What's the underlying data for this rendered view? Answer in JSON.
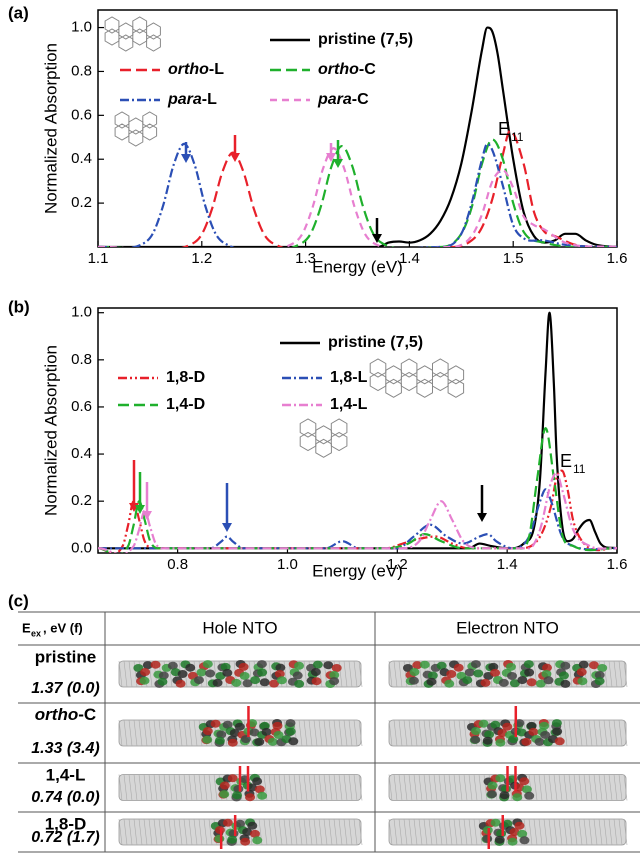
{
  "chart_data": [
    {
      "type": "line",
      "panel_label": "(a)",
      "xlabel": "Energy (eV)",
      "ylabel": "Normalized Absorption",
      "xlim": [
        1.1,
        1.6
      ],
      "ylim": [
        0,
        1.08
      ],
      "xticks": [
        1.1,
        1.2,
        1.3,
        1.4,
        1.5,
        1.6
      ],
      "yticks": [
        0.2,
        0.4,
        0.6,
        {
          "value": 1,
          "label": "1.0"
        },
        0.8
      ],
      "annotation": {
        "main": "E",
        "sub": "11"
      },
      "series": [
        {
          "name": "pristine (7,5)",
          "color": "#000000",
          "linestyle": "solid",
          "italic_prefix": false,
          "x": [
            1.1,
            1.37,
            1.38,
            1.39,
            1.4,
            1.41,
            1.42,
            1.43,
            1.44,
            1.45,
            1.46,
            1.47,
            1.475,
            1.48,
            1.485,
            1.49,
            1.5,
            1.51,
            1.52,
            1.53,
            1.54,
            1.55,
            1.56,
            1.57,
            1.58,
            1.6
          ],
          "values": [
            0,
            0,
            0.02,
            0.025,
            0.02,
            0.03,
            0.06,
            0.12,
            0.22,
            0.38,
            0.62,
            0.9,
            1.0,
            0.98,
            0.88,
            0.72,
            0.4,
            0.16,
            0.05,
            0.02,
            0.03,
            0.06,
            0.06,
            0.03,
            0.01,
            0
          ]
        },
        {
          "name": "ortho-L",
          "color": "#e8202a",
          "linestyle": "dash",
          "italic_prefix": true,
          "x": [
            1.1,
            1.19,
            1.2,
            1.21,
            1.22,
            1.23,
            1.24,
            1.25,
            1.26,
            1.27,
            1.44,
            1.46,
            1.47,
            1.48,
            1.49,
            1.497,
            1.51,
            1.52,
            1.53,
            1.54,
            1.56,
            1.6
          ],
          "values": [
            0,
            0.013,
            0.058,
            0.176,
            0.344,
            0.43,
            0.344,
            0.176,
            0.058,
            0.013,
            0,
            0.03,
            0.09,
            0.22,
            0.42,
            0.53,
            0.38,
            0.16,
            0.07,
            0.05,
            0.01,
            0
          ]
        },
        {
          "name": "ortho-C",
          "color": "#1fb02c",
          "linestyle": "dash",
          "italic_prefix": true,
          "x": [
            1.1,
            1.295,
            1.305,
            1.315,
            1.325,
            1.335,
            1.345,
            1.355,
            1.365,
            1.375,
            1.43,
            1.45,
            1.46,
            1.47,
            1.48,
            1.49,
            1.5,
            1.51,
            1.53,
            1.6
          ],
          "values": [
            0,
            0.014,
            0.062,
            0.189,
            0.368,
            0.46,
            0.368,
            0.189,
            0.062,
            0.014,
            0,
            0.06,
            0.18,
            0.38,
            0.49,
            0.4,
            0.2,
            0.07,
            0.02,
            0
          ]
        },
        {
          "name": "para-L",
          "color": "#2b4fb5",
          "linestyle": "dashdot",
          "italic_prefix": true,
          "x": [
            1.1,
            1.143,
            1.153,
            1.163,
            1.173,
            1.183,
            1.193,
            1.203,
            1.213,
            1.223,
            1.43,
            1.45,
            1.46,
            1.47,
            1.475,
            1.48,
            1.49,
            1.5,
            1.51,
            1.53,
            1.55,
            1.6
          ],
          "values": [
            0,
            0.014,
            0.063,
            0.193,
            0.376,
            0.47,
            0.376,
            0.193,
            0.063,
            0.014,
            0,
            0.06,
            0.2,
            0.4,
            0.47,
            0.44,
            0.28,
            0.1,
            0.04,
            0.03,
            0.01,
            0
          ]
        },
        {
          "name": "para-C",
          "color": "#e77fd0",
          "linestyle": "shortdash",
          "italic_prefix": true,
          "x": [
            1.1,
            1.287,
            1.297,
            1.307,
            1.317,
            1.327,
            1.337,
            1.347,
            1.357,
            1.367,
            1.44,
            1.46,
            1.47,
            1.48,
            1.49,
            1.5,
            1.51,
            1.52,
            1.53,
            1.55,
            1.6
          ],
          "values": [
            0,
            0.014,
            0.061,
            0.185,
            0.36,
            0.45,
            0.36,
            0.185,
            0.061,
            0.014,
            0,
            0.05,
            0.15,
            0.3,
            0.35,
            0.27,
            0.14,
            0.1,
            0.08,
            0.02,
            0
          ]
        }
      ]
    },
    {
      "type": "line",
      "panel_label": "(b)",
      "xlabel": "Energy (eV)",
      "ylabel": "Normalized Absorption",
      "xlim": [
        0.655,
        1.6
      ],
      "ylim": [
        -0.02,
        1.02
      ],
      "xticks": [
        0.8,
        {
          "value": 1,
          "label": "1.0"
        },
        1.2,
        1.4,
        1.6
      ],
      "yticks": [
        {
          "value": 0,
          "label": "0.0"
        },
        0.2,
        0.4,
        0.6,
        0.8,
        {
          "value": 1,
          "label": "1.0"
        }
      ],
      "annotation": {
        "main": "E",
        "sub": "11"
      },
      "series": [
        {
          "name": "pristine (7,5)",
          "color": "#000000",
          "linestyle": "solid",
          "italic_prefix": false,
          "x": [
            0.655,
            1.33,
            1.35,
            1.37,
            1.4,
            1.43,
            1.45,
            1.46,
            1.47,
            1.477,
            1.485,
            1.49,
            1.5,
            1.51,
            1.52,
            1.53,
            1.54,
            1.55,
            1.56,
            1.57,
            1.6
          ],
          "values": [
            0,
            0,
            0.02,
            0.01,
            0,
            0.02,
            0.1,
            0.3,
            0.75,
            1.0,
            0.7,
            0.4,
            0.1,
            0.03,
            0.04,
            0.08,
            0.11,
            0.12,
            0.07,
            0.02,
            0
          ]
        },
        {
          "name": "1,8-D",
          "color": "#e8202a",
          "linestyle": "dashdotdot",
          "italic_prefix": false,
          "x": [
            0.655,
            0.7,
            0.71,
            0.72,
            0.73,
            0.74,
            0.76,
            1.18,
            1.21,
            1.24,
            1.27,
            1.3,
            1.33,
            1.42,
            1.46,
            1.48,
            1.49,
            1.5,
            1.51,
            1.52,
            1.54,
            1.6
          ],
          "values": [
            0,
            0.01,
            0.1,
            0.2,
            0.12,
            0.03,
            0,
            0,
            0.02,
            0.04,
            0.05,
            0.02,
            0,
            0,
            0.05,
            0.18,
            0.3,
            0.33,
            0.25,
            0.12,
            0.02,
            0
          ]
        },
        {
          "name": "1,8-L",
          "color": "#2b4fb5",
          "linestyle": "dashdot",
          "italic_prefix": false,
          "x": [
            0.655,
            0.86,
            0.88,
            0.89,
            0.9,
            0.92,
            1.07,
            1.1,
            1.13,
            1.2,
            1.23,
            1.26,
            1.29,
            1.32,
            1.35,
            1.365,
            1.38,
            1.41,
            1.44,
            1.46,
            1.47,
            1.48,
            1.5,
            1.52,
            1.6
          ],
          "values": [
            0,
            0,
            0.03,
            0.05,
            0.03,
            0,
            0,
            0.03,
            0,
            0,
            0.05,
            0.1,
            0.05,
            0.02,
            0.05,
            0.06,
            0.03,
            0,
            0.05,
            0.2,
            0.25,
            0.2,
            0.05,
            0.01,
            0
          ]
        },
        {
          "name": "1,4-D",
          "color": "#1fb02c",
          "linestyle": "dash",
          "italic_prefix": false,
          "x": [
            0.655,
            0.71,
            0.72,
            0.73,
            0.74,
            0.75,
            0.77,
            1.18,
            1.22,
            1.25,
            1.28,
            1.32,
            1.42,
            1.44,
            1.455,
            1.47,
            1.485,
            1.5,
            1.52,
            1.6
          ],
          "values": [
            0,
            0.01,
            0.1,
            0.2,
            0.12,
            0.03,
            0,
            0,
            0.02,
            0.06,
            0.03,
            0,
            0,
            0.05,
            0.3,
            0.51,
            0.3,
            0.06,
            0.01,
            0
          ]
        },
        {
          "name": "1,4-L",
          "color": "#e77fd0",
          "linestyle": "dashdot",
          "italic_prefix": false,
          "x": [
            0.655,
            0.72,
            0.73,
            0.74,
            0.75,
            0.76,
            0.78,
            1.2,
            1.24,
            1.26,
            1.28,
            1.3,
            1.32,
            1.35,
            1.44,
            1.46,
            1.48,
            1.49,
            1.5,
            1.52,
            1.55,
            1.6
          ],
          "values": [
            0,
            0.01,
            0.08,
            0.16,
            0.09,
            0.02,
            0,
            0,
            0.03,
            0.12,
            0.2,
            0.12,
            0.03,
            0,
            0,
            0.08,
            0.28,
            0.32,
            0.25,
            0.08,
            0.01,
            0
          ]
        }
      ]
    }
  ],
  "table": {
    "panel_label": "(c)",
    "header": {
      "quantity": "E",
      "subscript": "ex",
      "unit": ", eV (f)"
    },
    "columns": [
      "Hole NTO",
      "Electron NTO"
    ],
    "rows": [
      {
        "name": "pristine",
        "value": "1.37 (0.0)",
        "italic_prefix": false
      },
      {
        "name": "ortho-C",
        "value": "1.33 (3.4)",
        "italic_prefix": true
      },
      {
        "name": "1,4-L",
        "value": "0.74 (0.0)",
        "italic_prefix": false
      },
      {
        "name": "1,8-D",
        "value": "0.72 (1.7)",
        "italic_prefix": false
      }
    ]
  }
}
